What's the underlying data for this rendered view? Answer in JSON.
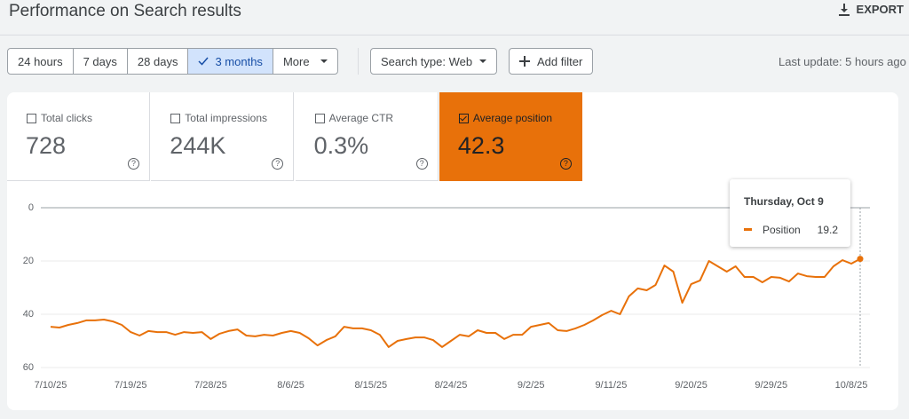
{
  "header": {
    "title": "Performance on Search results",
    "export": "EXPORT"
  },
  "filters": {
    "date_ranges": [
      "24 hours",
      "7 days",
      "28 days",
      "3 months",
      "More"
    ],
    "selected_range": 3,
    "search_type": "Search type: Web",
    "add_filter": "Add filter",
    "last_update": "Last update: 5 hours ago"
  },
  "metrics": {
    "items": [
      {
        "label": "Total clicks",
        "value": "728"
      },
      {
        "label": "Total impressions",
        "value": "244K"
      },
      {
        "label": "Average CTR",
        "value": "0.3%"
      },
      {
        "label": "Average position",
        "value": "42.3"
      }
    ],
    "selected": 3
  },
  "tooltip": {
    "date": "Thursday, Oct 9"
  },
  "chart_data": {
    "type": "line",
    "categories": [
      "7/10/25",
      null,
      null,
      null,
      null,
      null,
      null,
      null,
      null,
      "7/19/25",
      null,
      null,
      null,
      null,
      null,
      null,
      null,
      null,
      "7/28/25",
      null,
      null,
      null,
      null,
      null,
      null,
      null,
      null,
      "8/6/25",
      null,
      null,
      null,
      null,
      null,
      null,
      null,
      null,
      "8/15/25",
      null,
      null,
      null,
      null,
      null,
      null,
      null,
      null,
      "8/24/25",
      null,
      null,
      null,
      null,
      null,
      null,
      null,
      null,
      "9/2/25",
      null,
      null,
      null,
      null,
      null,
      null,
      null,
      null,
      "9/11/25",
      null,
      null,
      null,
      null,
      null,
      null,
      null,
      null,
      "9/20/25",
      null,
      null,
      null,
      null,
      null,
      null,
      null,
      null,
      "9/29/25",
      null,
      null,
      null,
      null,
      null,
      null,
      null,
      null,
      "10/8/25",
      null
    ],
    "series": [
      {
        "name": "Position",
        "color": "#e8710a",
        "values": [
          44.7,
          45,
          44,
          43.3,
          42.3,
          42.3,
          42,
          42.7,
          44,
          46.7,
          48,
          46.3,
          46.7,
          46.7,
          47.7,
          46.7,
          47,
          46.7,
          49.3,
          47.3,
          46.3,
          45.7,
          48,
          48.3,
          47.7,
          48,
          47,
          46.3,
          47,
          49,
          51.7,
          49.7,
          48.3,
          44.7,
          45.3,
          45.3,
          46,
          47.7,
          52.3,
          50,
          49.3,
          48.7,
          48.7,
          49.7,
          52.3,
          50,
          47.7,
          48.3,
          46,
          47,
          47,
          49.3,
          47.7,
          47.7,
          44.7,
          44,
          43.3,
          46,
          46.3,
          45.3,
          44,
          42.3,
          40.3,
          38.7,
          40,
          33.3,
          30.3,
          31,
          29,
          21.7,
          24,
          35.7,
          28.7,
          27.3,
          20,
          22,
          24,
          22,
          26,
          26,
          28,
          26,
          26.3,
          27.7,
          24.7,
          25.7,
          26,
          26,
          22,
          19.7,
          21,
          19.2
        ]
      }
    ],
    "ylim": [
      0,
      60
    ],
    "yticks": [
      0,
      20,
      40,
      60
    ],
    "y_reversed": true,
    "grid": true
  }
}
